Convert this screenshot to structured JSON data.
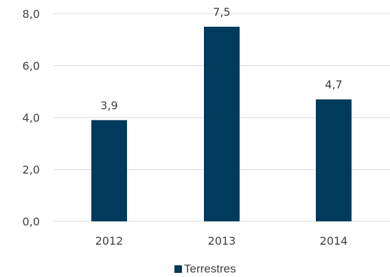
{
  "chart_data": {
    "type": "bar",
    "categories": [
      "2012",
      "2013",
      "2014"
    ],
    "series": [
      {
        "name": "Terrestres",
        "values": [
          3.9,
          7.5,
          4.7
        ],
        "value_labels": [
          "3,9",
          "7,5",
          "4,7"
        ],
        "color": "#003a5c"
      }
    ],
    "ylim": [
      0,
      8
    ],
    "yticks": [
      {
        "value": 0,
        "label": "0,0"
      },
      {
        "value": 2,
        "label": "2,0"
      },
      {
        "value": 4,
        "label": "4,0"
      },
      {
        "value": 6,
        "label": "6,0"
      },
      {
        "value": 8,
        "label": "8,0"
      }
    ],
    "grid": true,
    "grid_color": "#d9d9d9",
    "legend_position": "bottom"
  }
}
